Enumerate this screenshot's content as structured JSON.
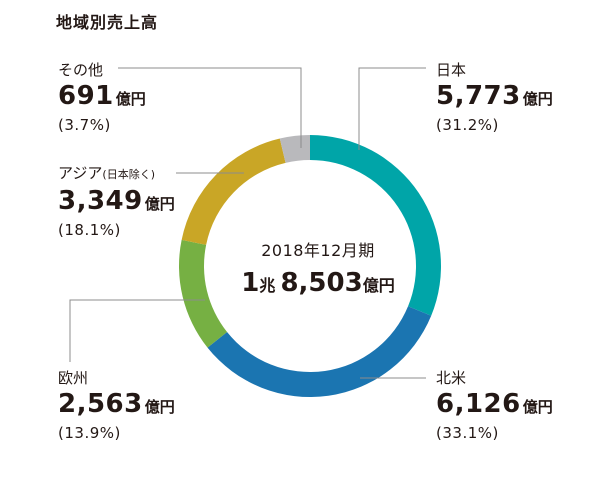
{
  "title": "地域別売上高",
  "center": {
    "period": "2018年12月期",
    "total_cho": "1",
    "total_cho_unit": "兆",
    "total_oku": "8,503",
    "total_unit": "億円"
  },
  "chart_data": {
    "type": "pie",
    "title": "地域別売上高",
    "donut": true,
    "slices": [
      {
        "name": "日本",
        "amount": "5,773",
        "unit": "億円",
        "percent": 31.2,
        "percent_label": "(31.2%)",
        "color": "#00a5a8"
      },
      {
        "name": "北米",
        "amount": "6,126",
        "unit": "億円",
        "percent": 33.1,
        "percent_label": "(33.1%)",
        "color": "#1b75b1"
      },
      {
        "name": "欧州",
        "amount": "2,563",
        "unit": "億円",
        "percent": 13.9,
        "percent_label": "(13.9%)",
        "color": "#76b043"
      },
      {
        "name": "アジア",
        "name_sub": "(日本除く)",
        "amount": "3,349",
        "unit": "億円",
        "percent": 18.1,
        "percent_label": "(18.1%)",
        "color": "#c9a626"
      },
      {
        "name": "その他",
        "amount": "691",
        "unit": "億円",
        "percent": 3.7,
        "percent_label": "(3.7%)",
        "color": "#b9b9bc"
      }
    ]
  }
}
